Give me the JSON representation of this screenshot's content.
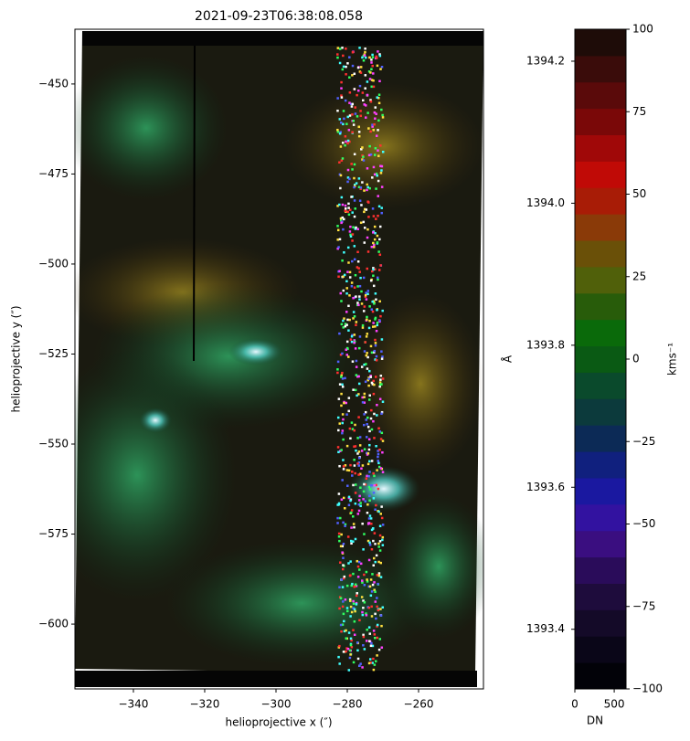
{
  "chart_data": {
    "type": "image",
    "title": "2021-09-23T06:38:08.058",
    "xlabel": "helioprojective x (″)",
    "ylabel": "helioprojective y (″)",
    "xlim": [
      -356.4,
      -241.8
    ],
    "ylim": [
      -618.0,
      -434.8
    ],
    "xticks": [
      {
        "value": -340,
        "label": "−340"
      },
      {
        "value": -320,
        "label": "−320"
      },
      {
        "value": -300,
        "label": "−300"
      },
      {
        "value": -280,
        "label": "−280"
      },
      {
        "value": -260,
        "label": "−260"
      }
    ],
    "yticks": [
      {
        "value": -450,
        "label": "−450"
      },
      {
        "value": -475,
        "label": "−475"
      },
      {
        "value": -500,
        "label": "−500"
      },
      {
        "value": -525,
        "label": "−525"
      },
      {
        "value": -550,
        "label": "−550"
      },
      {
        "value": -575,
        "label": "−575"
      },
      {
        "value": -600,
        "label": "−600"
      }
    ],
    "colorbar": {
      "colors": [
        "#020208",
        "#0a0618",
        "#140a28",
        "#1e0c3c",
        "#2a0c5a",
        "#3a0e80",
        "#3212a0",
        "#1a18a0",
        "#10207e",
        "#0c2a56",
        "#0c3a3c",
        "#0a4a2c",
        "#0a5a14",
        "#0a6a0a",
        "#285c0a",
        "#50600a",
        "#6a5008",
        "#8a3a08",
        "#a81c06",
        "#c00a06",
        "#a00808",
        "#7a0808",
        "#5a0a0a",
        "#3a0c0a",
        "#1e0c08"
      ],
      "ylim": [
        -100,
        100
      ],
      "yticks": [
        {
          "value": -100,
          "label": "−100"
        },
        {
          "value": -75,
          "label": "−75"
        },
        {
          "value": -50,
          "label": "−50"
        },
        {
          "value": -25,
          "label": "−25"
        },
        0,
        25,
        50,
        75,
        100
      ],
      "ylabel": "kms⁻¹",
      "y2lim": [
        1393.316,
        1394.245
      ],
      "y2ticks": [
        1393.4,
        1393.6,
        1393.8,
        {
          "value": 1394.0,
          "label": "1394.0"
        },
        1394.2
      ],
      "y2label": "Å",
      "xlim": [
        0,
        650
      ],
      "xticks": [
        0,
        500
      ],
      "xlabel": "DN"
    }
  }
}
